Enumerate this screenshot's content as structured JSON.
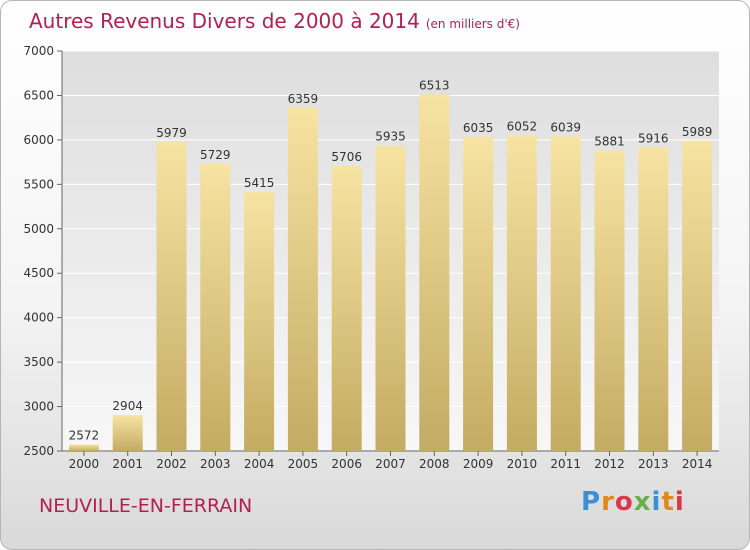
{
  "chart_data": {
    "type": "bar",
    "title": "Autres Revenus Divers de 2000 à 2014",
    "subtitle": "(en milliers d'€)",
    "categories": [
      "2000",
      "2001",
      "2002",
      "2003",
      "2004",
      "2005",
      "2006",
      "2007",
      "2008",
      "2009",
      "2010",
      "2011",
      "2012",
      "2013",
      "2014"
    ],
    "values": [
      2572,
      2904,
      5979,
      5729,
      5415,
      6359,
      5706,
      5935,
      6513,
      6035,
      6052,
      6039,
      5881,
      5916,
      5989
    ],
    "ylim": [
      2500,
      7000
    ],
    "yticks": [
      2500,
      3000,
      3500,
      4000,
      4500,
      5000,
      5500,
      6000,
      6500,
      7000
    ],
    "xlabel": "",
    "ylabel": "",
    "grid": true,
    "colors": {
      "bar_top": "#f7e3a2",
      "bar_bottom": "#c4ab63",
      "title": "#b2204f"
    }
  },
  "footer": {
    "commune": "NEUVILLE-EN-FERRAIN"
  },
  "logo": {
    "text": "Proxiti"
  }
}
